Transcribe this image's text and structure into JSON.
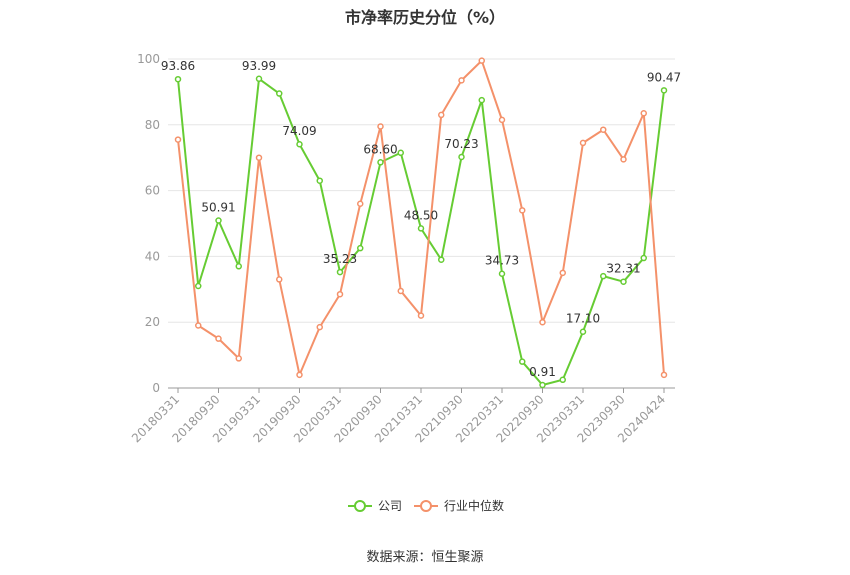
{
  "chart_data": {
    "type": "line",
    "title": "市净率历史分位（%）",
    "source": "数据来源：恒生聚源",
    "ylim": [
      0,
      100
    ],
    "yticks": [
      0,
      20,
      40,
      60,
      80,
      100
    ],
    "grid": true,
    "legend_position": "bottom",
    "x": [
      "20180331",
      "20180630",
      "20180930",
      "20181231",
      "20190331",
      "20190630",
      "20190930",
      "20191231",
      "20200331",
      "20200630",
      "20200930",
      "20201231",
      "20210331",
      "20210630",
      "20210930",
      "20211231",
      "20220331",
      "20220630",
      "20220930",
      "20221231",
      "20230331",
      "20230630",
      "20230930",
      "20231231",
      "20240424"
    ],
    "xtick_labels": [
      "20180331",
      "20180930",
      "20190331",
      "20190930",
      "20200331",
      "20200930",
      "20210331",
      "20210930",
      "20220331",
      "20220930",
      "20230331",
      "20230930",
      "20240424"
    ],
    "series": [
      {
        "name": "公司",
        "color": "#66cc33",
        "values": [
          93.86,
          31,
          50.91,
          37,
          93.99,
          89.5,
          74.09,
          63,
          35.23,
          42.5,
          68.6,
          71.5,
          48.5,
          39,
          70.23,
          87.5,
          34.73,
          8,
          0.91,
          2.5,
          17.1,
          34,
          32.31,
          39.5,
          90.47
        ],
        "labels": {
          "0": "93.86",
          "2": "50.91",
          "4": "93.99",
          "6": "74.09",
          "8": "35.23",
          "10": "68.60",
          "12": "48.50",
          "14": "70.23",
          "16": "34.73",
          "18": "0.91",
          "20": "17.10",
          "22": "32.31",
          "24": "90.47"
        }
      },
      {
        "name": "行业中位数",
        "color": "#f4916a",
        "values": [
          75.5,
          19,
          15,
          9,
          70,
          33,
          4,
          18.5,
          28.5,
          56,
          79.5,
          29.5,
          22,
          83,
          93.5,
          99.5,
          81.5,
          54,
          20,
          35,
          74.5,
          78.5,
          69.5,
          83.5,
          4
        ]
      }
    ]
  }
}
